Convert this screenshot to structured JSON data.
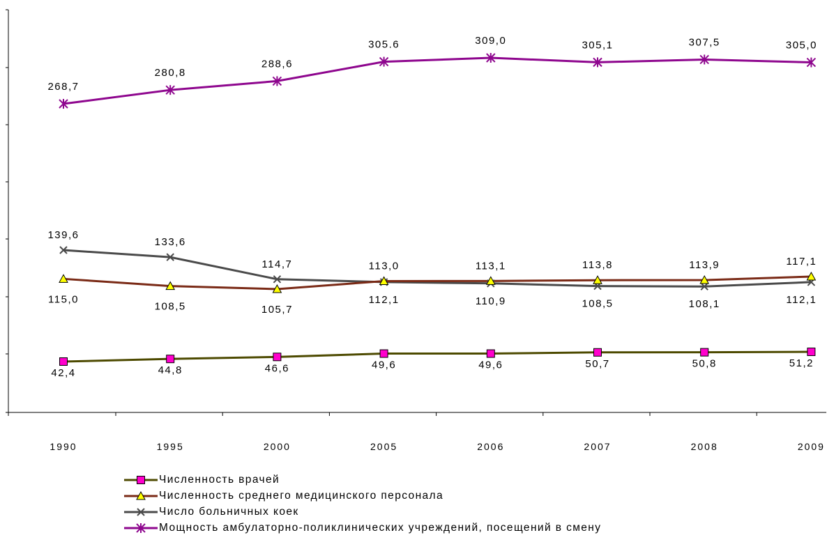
{
  "chart_data": {
    "type": "line",
    "categories": [
      "1990",
      "1995",
      "2000",
      "2005",
      "2006",
      "2007",
      "2008",
      "2009"
    ],
    "series": [
      {
        "name": "Численность врачей",
        "color": "#4d4a00",
        "marker": "square",
        "marker_fill": "#ff00cc",
        "values": [
          42.4,
          44.8,
          46.6,
          49.6,
          49.6,
          50.7,
          50.8,
          51.2
        ],
        "labels": [
          "42,4",
          "44,8",
          "46,6",
          "49,6",
          "49,6",
          "50,7",
          "50,8",
          "51,2"
        ]
      },
      {
        "name": "Численность среднего медицинского персонала",
        "color": "#7a2a16",
        "marker": "triangle",
        "marker_fill": "#ffff00",
        "values": [
          115.0,
          108.5,
          105.7,
          113.0,
          113.1,
          113.8,
          113.9,
          117.1
        ],
        "labels": [
          "115,0",
          "108,5",
          "105,7",
          "113,0",
          "113,1",
          "113,8",
          "113,9",
          "117,1"
        ]
      },
      {
        "name": "Число больничных коек",
        "color": "#4a4a4a",
        "marker": "x",
        "marker_fill": "#4a4a4a",
        "values": [
          139.6,
          133.6,
          114.7,
          112.1,
          110.9,
          108.5,
          108.1,
          112.1
        ],
        "labels": [
          "139,6",
          "133,6",
          "114,7",
          "112,1",
          "110,9",
          "108,5",
          "108,1",
          "112,1"
        ]
      },
      {
        "name": "Мощность амбулаторно-поликлинических учреждений, посещений в смену",
        "color": "#8e068e",
        "marker": "star",
        "marker_fill": "#8e068e",
        "values": [
          268.7,
          280.8,
          288.6,
          305.6,
          309.0,
          305.1,
          307.5,
          305.0
        ],
        "labels": [
          "268,7",
          "280,8",
          "288,6",
          "305.6",
          "309,0",
          "305,1",
          "307,5",
          "305,0"
        ]
      }
    ],
    "y_axis_labels": [],
    "grid": false,
    "legend_position": "bottom"
  }
}
